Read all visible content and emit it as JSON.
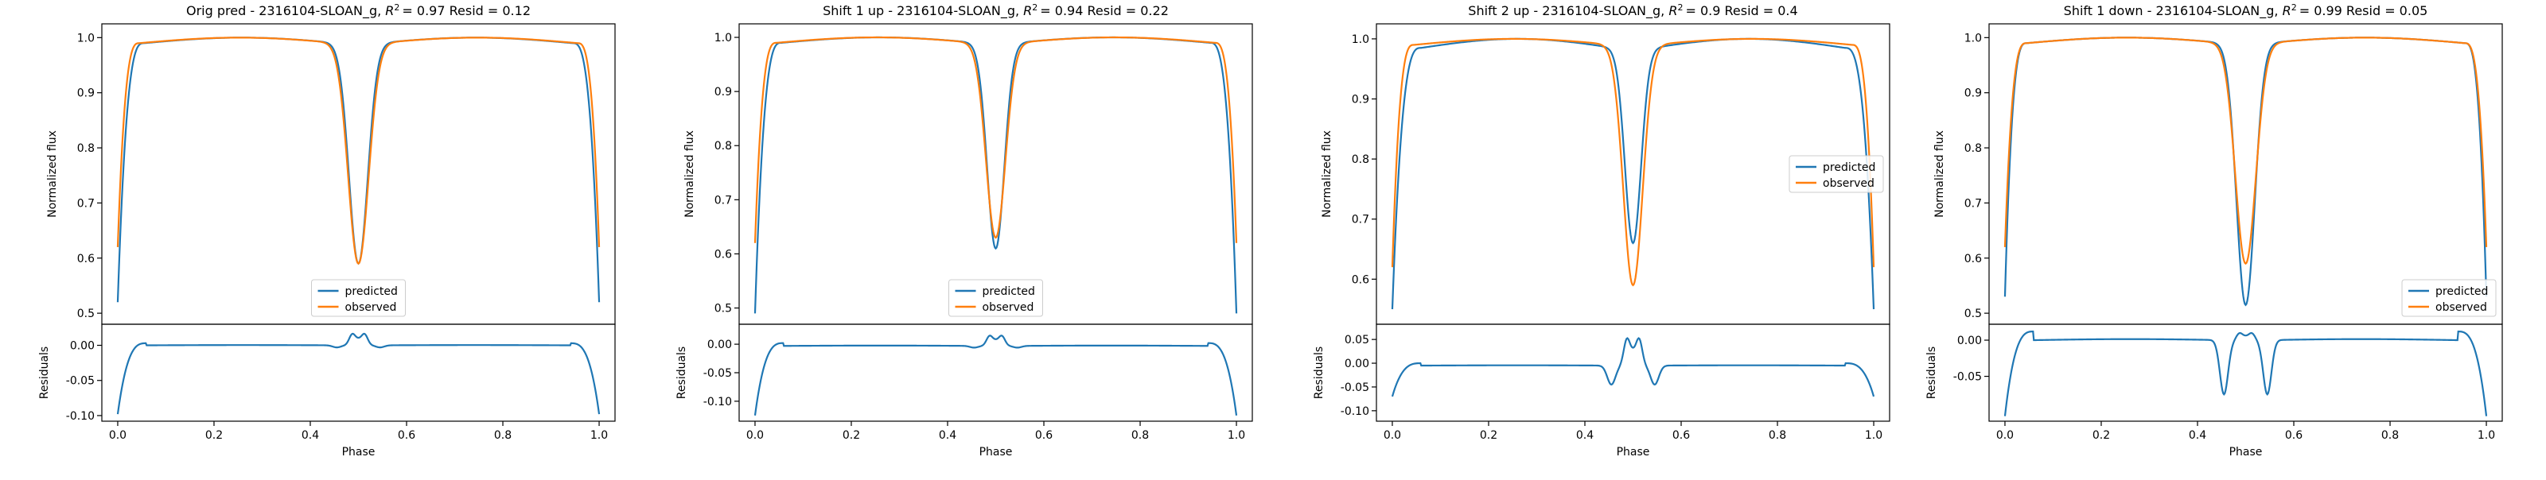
{
  "figure": {
    "colors": {
      "predicted": "#1f77b4",
      "observed": "#ff7f0e",
      "axis": "#000000"
    }
  },
  "chart_data": [
    {
      "type": "line",
      "title": "Orig pred - 2316104-SLOAN_g, R² = 0.97 Resid = 0.12",
      "title_prefix": "Orig pred - 2316104-SLOAN_g, ",
      "title_r2": "= 0.97 Resid = 0.12",
      "xlabel": "Phase",
      "ylabel": "Normalized flux",
      "resid_ylabel": "Residuals",
      "xlim": [
        -0.033,
        1.033
      ],
      "ylim": [
        0.48,
        1.025
      ],
      "resid_ylim": [
        -0.108,
        0.03
      ],
      "xticks": [
        "0.0",
        "0.2",
        "0.4",
        "0.6",
        "0.8",
        "1.0"
      ],
      "yticks": [
        "0.5",
        "0.6",
        "0.7",
        "0.8",
        "0.9",
        "1.0"
      ],
      "resid_yticks": [
        "-0.10",
        "-0.05",
        "0.00"
      ],
      "legend_position": "lower center",
      "series": [
        {
          "name": "predicted",
          "ingress": 0.055,
          "edge": 0.52,
          "shoulder": 0.99,
          "eclipse_depth": 0.59,
          "eclipse_width": 0.035,
          "max": 1.0
        },
        {
          "name": "observed",
          "ingress": 0.045,
          "edge": 0.62,
          "shoulder": 0.99,
          "eclipse_depth": 0.59,
          "eclipse_width": 0.038,
          "max": 1.0
        }
      ],
      "residuals": {
        "base": 0.0,
        "near_edge": 0.003,
        "edge_value": -0.098,
        "bump": 0.02,
        "dip": -0.003
      }
    },
    {
      "type": "line",
      "title": "Shift 1 up - 2316104-SLOAN_g, R² = 0.94 Resid = 0.22",
      "title_prefix": "Shift 1 up - 2316104-SLOAN_g, ",
      "title_r2": "= 0.94 Resid = 0.22",
      "xlabel": "Phase",
      "ylabel": "Normalized flux",
      "resid_ylabel": "Residuals",
      "xlim": [
        -0.033,
        1.033
      ],
      "ylim": [
        0.47,
        1.025
      ],
      "resid_ylim": [
        -0.135,
        0.035
      ],
      "xticks": [
        "0.0",
        "0.2",
        "0.4",
        "0.6",
        "0.8",
        "1.0"
      ],
      "yticks": [
        "0.5",
        "0.6",
        "0.7",
        "0.8",
        "0.9",
        "1.0"
      ],
      "resid_yticks": [
        "-0.10",
        "-0.05",
        "0.00"
      ],
      "resid_extra_ticks": [
        "-0.125",
        "-0.075",
        "-0.025"
      ],
      "legend_position": "lower center",
      "series": [
        {
          "name": "predicted",
          "ingress": 0.055,
          "edge": 0.49,
          "shoulder": 0.99,
          "eclipse_depth": 0.61,
          "eclipse_width": 0.032,
          "max": 1.0
        },
        {
          "name": "observed",
          "ingress": 0.045,
          "edge": 0.62,
          "shoulder": 0.99,
          "eclipse_depth": 0.63,
          "eclipse_width": 0.036,
          "max": 1.0
        }
      ],
      "residuals": {
        "base": -0.003,
        "near_edge": 0.002,
        "edge_value": -0.125,
        "bump": 0.022,
        "dip": -0.003
      }
    },
    {
      "type": "line",
      "title": "Shift 2 up - 2316104-SLOAN_g, R² = 0.9 Resid = 0.4",
      "title_prefix": "Shift 2 up - 2316104-SLOAN_g, ",
      "title_r2": "= 0.9 Resid = 0.4",
      "xlabel": "Phase",
      "ylabel": "Normalized flux",
      "resid_ylabel": "Residuals",
      "xlim": [
        -0.033,
        1.033
      ],
      "ylim": [
        0.525,
        1.025
      ],
      "resid_ylim": [
        -0.122,
        0.082
      ],
      "xticks": [
        "0.0",
        "0.2",
        "0.4",
        "0.6",
        "0.8",
        "1.0"
      ],
      "yticks": [
        "0.6",
        "0.7",
        "0.8",
        "0.9",
        "1.0"
      ],
      "resid_yticks": [
        "-0.10",
        "-0.05",
        "0.00",
        "0.05"
      ],
      "legend_position": "center right",
      "series": [
        {
          "name": "predicted",
          "ingress": 0.06,
          "edge": 0.55,
          "shoulder": 0.985,
          "eclipse_depth": 0.66,
          "eclipse_width": 0.03,
          "max": 1.0
        },
        {
          "name": "observed",
          "ingress": 0.045,
          "edge": 0.62,
          "shoulder": 0.99,
          "eclipse_depth": 0.59,
          "eclipse_width": 0.036,
          "max": 1.0
        }
      ],
      "residuals": {
        "base": -0.005,
        "near_edge": 0.0,
        "edge_value": -0.07,
        "bump": 0.07,
        "dip": -0.04
      }
    },
    {
      "type": "line",
      "title": "Shift 1 down - 2316104-SLOAN_g, R² = 0.99 Resid = 0.05",
      "title_prefix": "Shift 1 down - 2316104-SLOAN_g, ",
      "title_r2": "= 0.99 Resid = 0.05",
      "xlabel": "Phase",
      "ylabel": "Normalized flux",
      "resid_ylabel": "Residuals",
      "xlim": [
        -0.033,
        1.033
      ],
      "ylim": [
        0.48,
        1.025
      ],
      "resid_ylim": [
        -0.112,
        0.022
      ],
      "xticks": [
        "0.0",
        "0.2",
        "0.4",
        "0.6",
        "0.8",
        "1.0"
      ],
      "yticks": [
        "0.5",
        "0.6",
        "0.7",
        "0.8",
        "0.9",
        "1.0"
      ],
      "resid_yticks": [
        "-0.05",
        "0.00"
      ],
      "legend_position": "lower right",
      "series": [
        {
          "name": "predicted",
          "ingress": 0.045,
          "edge": 0.53,
          "shoulder": 0.99,
          "eclipse_depth": 0.515,
          "eclipse_width": 0.034,
          "max": 1.0
        },
        {
          "name": "observed",
          "ingress": 0.045,
          "edge": 0.62,
          "shoulder": 0.99,
          "eclipse_depth": 0.59,
          "eclipse_width": 0.038,
          "max": 1.0
        }
      ],
      "residuals": {
        "base": 0.0,
        "near_edge": 0.012,
        "edge_value": -0.105,
        "bump": 0.012,
        "dip": -0.075
      }
    }
  ]
}
